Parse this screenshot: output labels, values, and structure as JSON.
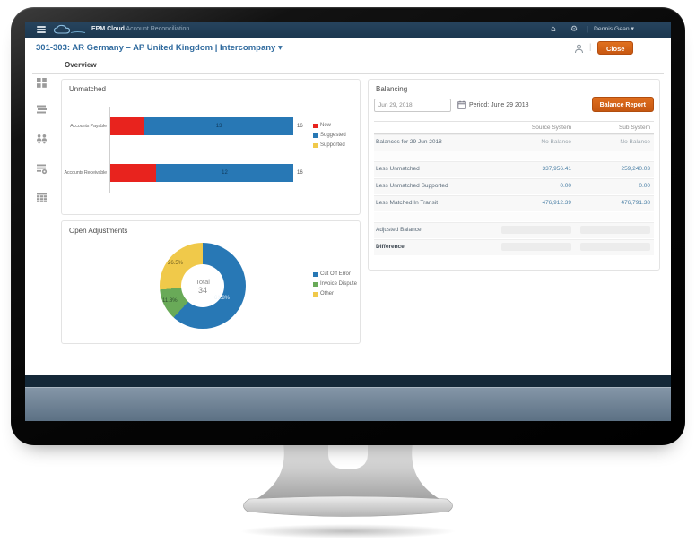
{
  "app": {
    "topbar": {
      "brand_bold": "EPM Cloud",
      "brand_rest": " Account Reconciliation",
      "home_glyph": "⌂",
      "settings_glyph": "⚙",
      "separator": "|",
      "user_name": "Dennis Gean ▾"
    },
    "titlebar": {
      "title": "301-303: AR Germany – AP United Kingdom | Intercompany ▾",
      "separator": "|",
      "close_label": "Close"
    },
    "tab_label": "Overview"
  },
  "sidebar": {
    "items": [
      {
        "name": "overview"
      },
      {
        "name": "properties"
      },
      {
        "name": "team"
      },
      {
        "name": "actions"
      },
      {
        "name": "matching"
      }
    ]
  },
  "colors": {
    "topbar_navy": "#1c3850",
    "accent_orange": "#d2601c",
    "title_blue": "#2f6a9e",
    "bar_red": "#e8231e",
    "bar_blue": "#2878b5",
    "pie_green": "#69aa58",
    "pie_yellow": "#f0c94a"
  },
  "chart_data": [
    {
      "type": "bar",
      "subtype": "horizontal-stacked",
      "title": "Unmatched",
      "categories": [
        "Accounts Payable",
        "Accounts Receivable"
      ],
      "series": [
        {
          "name": "New",
          "color": "#e8231e",
          "values": [
            3,
            4
          ]
        },
        {
          "name": "Suggested",
          "color": "#2878b5",
          "values": [
            13,
            12
          ]
        },
        {
          "name": "Supported",
          "color": "#f0c94a",
          "values": [
            0,
            0
          ]
        }
      ],
      "bar_value_labels": [
        "13",
        "12"
      ],
      "totals": [
        "16",
        "16"
      ],
      "xlim": [
        0,
        16
      ],
      "legend_position": "right",
      "grid": false
    },
    {
      "type": "pie",
      "subtype": "donut",
      "title": "Open Adjustments",
      "center_label": "Total",
      "center_value": "34",
      "slices": [
        {
          "label": "Cut Off Error",
          "value": 21,
          "pct_label": "61.8%",
          "color": "#2878b5"
        },
        {
          "label": "Invoice Dispute",
          "value": 4,
          "pct_label": "11.8%",
          "color": "#69aa58"
        },
        {
          "label": "Other",
          "value": 9,
          "pct_label": "26.5%",
          "color": "#f0c94a"
        }
      ],
      "legend_position": "right",
      "start_angle_deg": 0
    }
  ],
  "balancing": {
    "title": "Balancing",
    "date_value": "Jun 29, 2018",
    "period_label": "Period: June 29 2018",
    "report_button": "Balance Report",
    "columns": [
      "",
      "Source System",
      "Sub System"
    ],
    "rows": [
      {
        "label": "Balances for 29 Jun 2018",
        "source": "No Balance",
        "sub": "No Balance",
        "style": "muted"
      },
      {
        "label": "",
        "source": "",
        "sub": "",
        "style": "spacer"
      },
      {
        "label": "Less Unmatched",
        "source": "337,956.41",
        "sub": "259,240.03",
        "style": "link"
      },
      {
        "label": "Less Unmatched Supported",
        "source": "0.00",
        "sub": "0.00",
        "style": "link"
      },
      {
        "label": "Less Matched In Transit",
        "source": "476,912.39",
        "sub": "476,791.38",
        "style": "link"
      },
      {
        "label": "",
        "source": "",
        "sub": "",
        "style": "spacer"
      },
      {
        "label": "Adjusted Balance",
        "source": "",
        "sub": "",
        "style": "field"
      },
      {
        "label": "Difference",
        "source": "",
        "sub": "",
        "style": "bold"
      }
    ]
  }
}
